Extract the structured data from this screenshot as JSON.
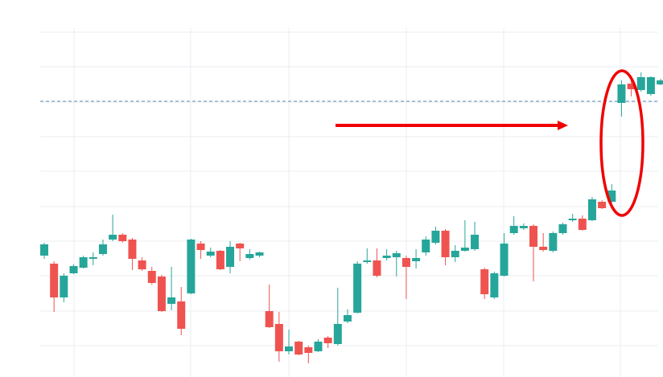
{
  "chart_data": {
    "type": "candlestick",
    "categories": [
      null,
      null,
      null,
      null,
      null,
      null,
      null,
      null,
      null,
      null,
      null,
      null,
      null,
      null,
      null,
      null,
      null,
      null,
      null,
      null,
      null,
      null,
      null,
      null,
      null,
      null,
      null,
      null,
      null,
      null,
      null,
      null,
      null,
      null,
      null,
      null,
      null,
      null,
      null,
      null,
      null,
      null,
      null,
      null,
      null,
      null,
      null,
      null,
      null,
      null,
      null,
      null,
      null,
      null,
      null,
      null,
      null,
      null,
      null,
      null,
      null,
      null,
      null,
      null
    ],
    "open": [
      151,
      141,
      99,
      129,
      136,
      147,
      153,
      171,
      177,
      171,
      145,
      132,
      125,
      91,
      94,
      104,
      166,
      151,
      157,
      137,
      166,
      148,
      151,
      82,
      66,
      32,
      44,
      37,
      32,
      49,
      41,
      69,
      80,
      143,
      145,
      148,
      149,
      148,
      144,
      155,
      167,
      182,
      149,
      157,
      159,
      134,
      99,
      126,
      179,
      185,
      188,
      162,
      157,
      179,
      195,
      197,
      195,
      218,
      218,
      341,
      365,
      357,
      352,
      364
    ],
    "high": [
      167,
      144,
      129,
      140,
      151,
      155,
      171,
      202,
      179,
      173,
      149,
      137,
      127,
      137,
      112,
      172,
      169,
      161,
      158,
      169,
      167,
      159,
      156,
      115,
      81,
      59,
      45,
      39,
      47,
      51,
      111,
      84,
      144,
      160,
      160,
      159,
      157,
      151,
      159,
      175,
      187,
      184,
      164,
      195,
      193,
      136,
      131,
      179,
      200,
      191,
      190,
      179,
      181,
      192,
      203,
      201,
      224,
      220,
      240,
      369,
      371,
      379,
      374,
      371
    ],
    "low": [
      147,
      81,
      93,
      128,
      135,
      139,
      151,
      169,
      167,
      133,
      132,
      115,
      81,
      83,
      52,
      103,
      147,
      149,
      133,
      129,
      144,
      146,
      149,
      61,
      19,
      28,
      27,
      17,
      31,
      36,
      39,
      67,
      79,
      141,
      124,
      145,
      125,
      97,
      135,
      151,
      165,
      139,
      143,
      156,
      157,
      97,
      97,
      125,
      177,
      183,
      119,
      156,
      155,
      177,
      193,
      182,
      194,
      209,
      217,
      324,
      349,
      355,
      350,
      363
    ],
    "close": [
      165,
      99,
      126,
      138,
      149,
      149,
      165,
      177,
      169,
      147,
      134,
      117,
      82,
      99,
      60,
      171,
      158,
      156,
      134,
      162,
      160,
      153,
      155,
      62,
      32,
      38,
      28,
      30,
      44,
      42,
      66,
      77,
      141,
      145,
      126,
      151,
      154,
      137,
      148,
      171,
      182,
      149,
      157,
      161,
      177,
      103,
      129,
      166,
      188,
      188,
      162,
      158,
      179,
      190,
      197,
      183,
      221,
      210,
      232,
      364,
      358,
      373,
      373,
      369
    ],
    "up_color": "#26a69a",
    "down_color": "#ef5350",
    "ylim": [
      0,
      469
    ],
    "yticks": [
      39,
      82,
      126,
      169,
      212,
      256,
      299,
      342,
      386,
      429
    ],
    "grid": true,
    "reference_line": 343
  }
}
